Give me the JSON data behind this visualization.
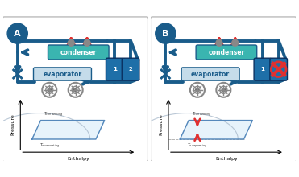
{
  "bg_color": "#ffffff",
  "border_color": "#bbbbbb",
  "blue_dark": "#1a5c8a",
  "blue_mid": "#2176ae",
  "blue_light": "#a8d8ea",
  "teal_cond": "#3ab5b0",
  "evap_fill": "#c5dcea",
  "red_arrow": "#e03030",
  "comp_color": "#1e6fa8",
  "panel_A": "A",
  "panel_B": "B",
  "condenser_label": "condenser",
  "evaporator_label": "evaporator",
  "pressure_label": "Pressure",
  "enthalpy_label": "Enthalpy",
  "figsize": [
    3.71,
    2.2
  ],
  "dpi": 100
}
